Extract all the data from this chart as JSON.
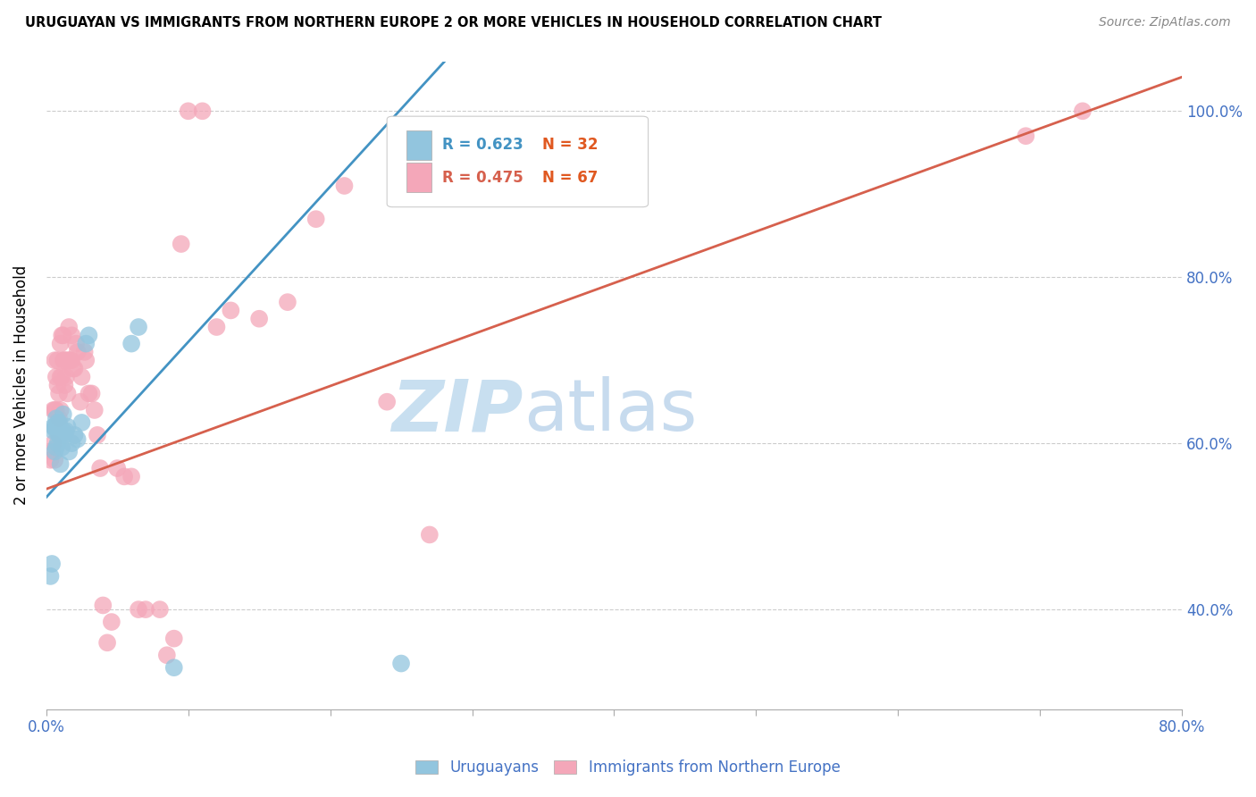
{
  "title": "URUGUAYAN VS IMMIGRANTS FROM NORTHERN EUROPE 2 OR MORE VEHICLES IN HOUSEHOLD CORRELATION CHART",
  "source": "Source: ZipAtlas.com",
  "ylabel": "2 or more Vehicles in Household",
  "xlim": [
    0.0,
    0.8
  ],
  "ylim": [
    0.28,
    1.06
  ],
  "x_ticks": [
    0.0,
    0.1,
    0.2,
    0.3,
    0.4,
    0.5,
    0.6,
    0.7,
    0.8
  ],
  "y_ticks": [
    0.4,
    0.6,
    0.8,
    1.0
  ],
  "y_tick_labels": [
    "40.0%",
    "60.0%",
    "80.0%",
    "100.0%"
  ],
  "blue_color": "#92c5de",
  "pink_color": "#f4a7b9",
  "blue_line_color": "#4393c3",
  "pink_line_color": "#d6604d",
  "watermark_zip": "ZIP",
  "watermark_atlas": "atlas",
  "blue_x": [
    0.003,
    0.004,
    0.005,
    0.005,
    0.006,
    0.006,
    0.007,
    0.007,
    0.007,
    0.008,
    0.008,
    0.009,
    0.009,
    0.01,
    0.01,
    0.011,
    0.012,
    0.012,
    0.013,
    0.014,
    0.015,
    0.016,
    0.018,
    0.02,
    0.022,
    0.025,
    0.028,
    0.03,
    0.06,
    0.065,
    0.09,
    0.25
  ],
  "blue_y": [
    0.44,
    0.455,
    0.62,
    0.615,
    0.59,
    0.62,
    0.595,
    0.615,
    0.63,
    0.6,
    0.625,
    0.61,
    0.625,
    0.575,
    0.61,
    0.595,
    0.615,
    0.635,
    0.61,
    0.615,
    0.62,
    0.59,
    0.6,
    0.61,
    0.605,
    0.625,
    0.72,
    0.73,
    0.72,
    0.74,
    0.33,
    0.335
  ],
  "pink_x": [
    0.003,
    0.004,
    0.005,
    0.005,
    0.006,
    0.006,
    0.006,
    0.007,
    0.007,
    0.008,
    0.008,
    0.009,
    0.009,
    0.01,
    0.01,
    0.01,
    0.011,
    0.011,
    0.012,
    0.012,
    0.013,
    0.013,
    0.014,
    0.014,
    0.015,
    0.016,
    0.016,
    0.017,
    0.018,
    0.018,
    0.019,
    0.02,
    0.021,
    0.022,
    0.024,
    0.025,
    0.027,
    0.028,
    0.03,
    0.032,
    0.034,
    0.036,
    0.038,
    0.04,
    0.043,
    0.046,
    0.05,
    0.055,
    0.06,
    0.065,
    0.07,
    0.08,
    0.085,
    0.09,
    0.095,
    0.1,
    0.11,
    0.12,
    0.13,
    0.15,
    0.17,
    0.19,
    0.21,
    0.24,
    0.27,
    0.69,
    0.73
  ],
  "pink_y": [
    0.58,
    0.59,
    0.6,
    0.64,
    0.58,
    0.64,
    0.7,
    0.64,
    0.68,
    0.67,
    0.7,
    0.63,
    0.66,
    0.64,
    0.68,
    0.72,
    0.68,
    0.73,
    0.7,
    0.73,
    0.67,
    0.7,
    0.68,
    0.7,
    0.66,
    0.7,
    0.74,
    0.7,
    0.7,
    0.73,
    0.69,
    0.69,
    0.72,
    0.71,
    0.65,
    0.68,
    0.71,
    0.7,
    0.66,
    0.66,
    0.64,
    0.61,
    0.57,
    0.405,
    0.36,
    0.385,
    0.57,
    0.56,
    0.56,
    0.4,
    0.4,
    0.4,
    0.345,
    0.365,
    0.84,
    1.0,
    1.0,
    0.74,
    0.76,
    0.75,
    0.77,
    0.87,
    0.91,
    0.65,
    0.49,
    0.97,
    1.0
  ]
}
